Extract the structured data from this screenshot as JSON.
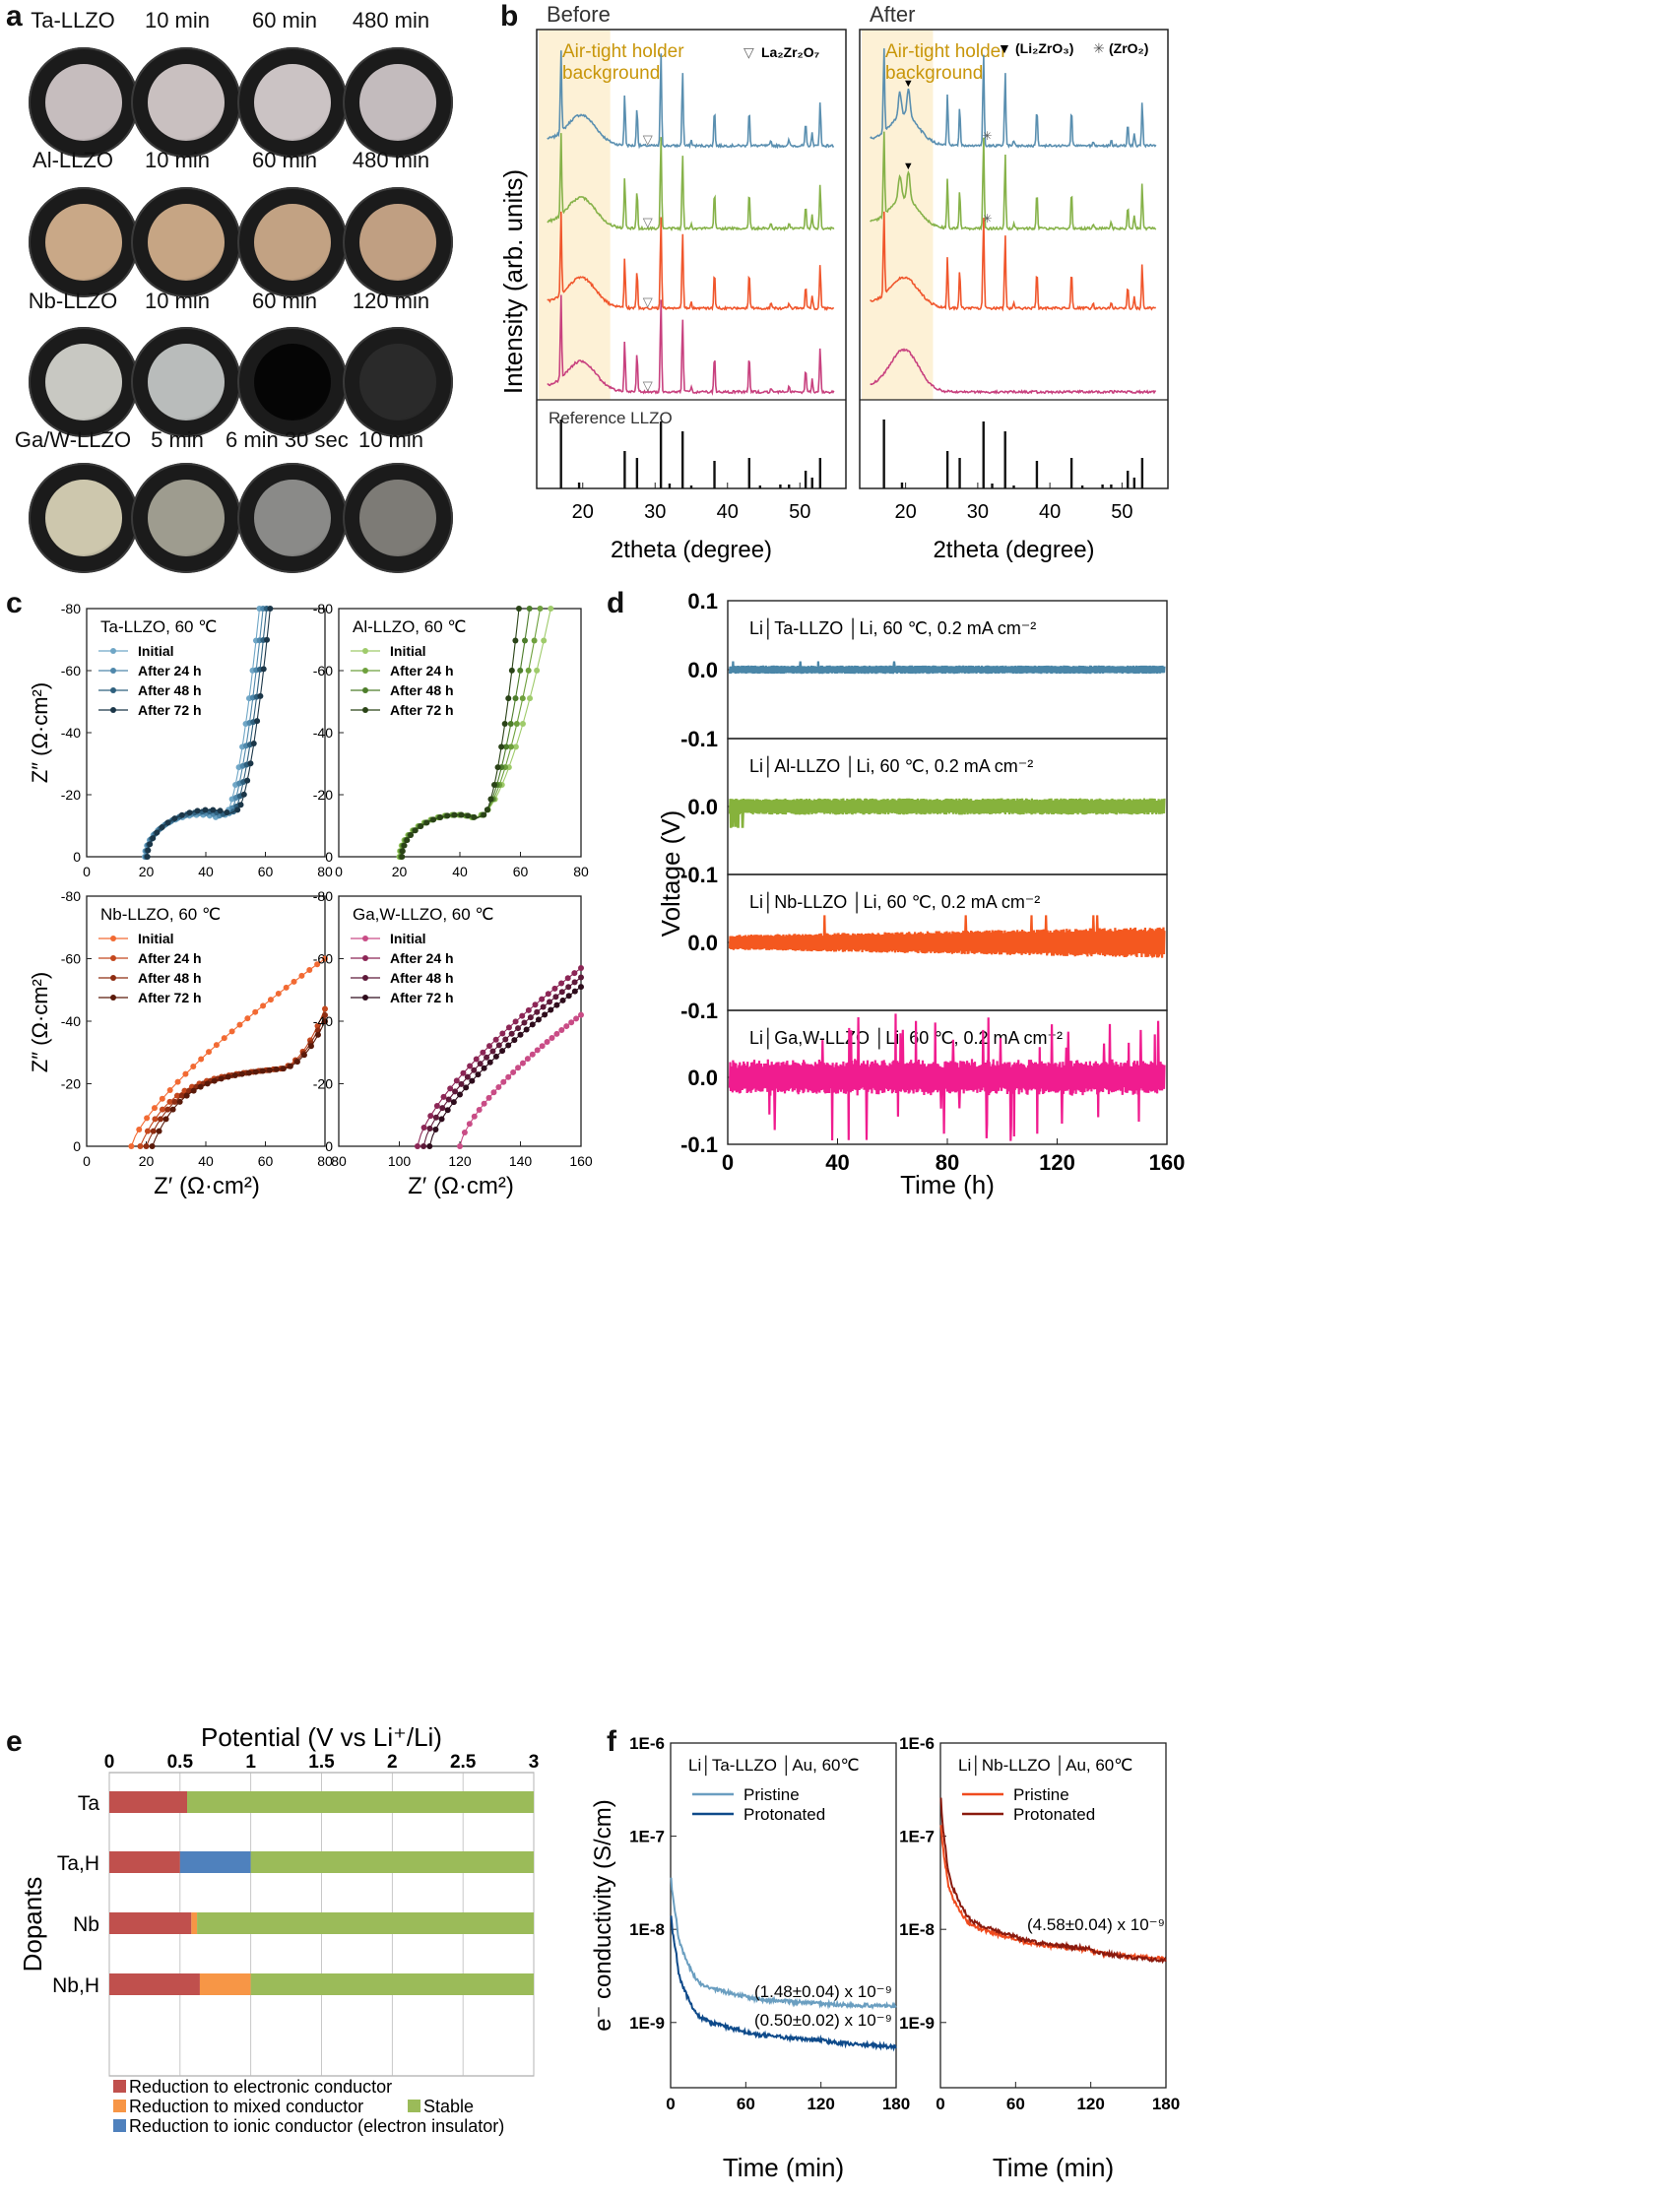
{
  "panel_labels": {
    "a": "a",
    "b": "b",
    "c": "c",
    "d": "d",
    "e": "e",
    "f": "f"
  },
  "panel_a": {
    "rows": [
      {
        "sample": "Ta-LLZO",
        "times": [
          "10 min",
          "60 min",
          "480 min"
        ],
        "colors": [
          "#c6bdbe",
          "#c9c0c0",
          "#cbc3c4",
          "#c3bbbd"
        ]
      },
      {
        "sample": "Al-LLZO",
        "times": [
          "10 min",
          "60 min",
          "480 min"
        ],
        "colors": [
          "#c9a887",
          "#c6a584",
          "#c2a283",
          "#c09f82"
        ]
      },
      {
        "sample": "Nb-LLZO",
        "times": [
          "10 min",
          "60 min",
          "120 min"
        ],
        "colors": [
          "#c8c8c2",
          "#b9bcbb",
          "#050505",
          "#2a2a2a"
        ]
      },
      {
        "sample": "Ga/W-LLZO",
        "times": [
          "5 min",
          "6 min 30 sec",
          "10 min"
        ],
        "colors": [
          "#cdc7ad",
          "#9e9c8f",
          "#8a8a88",
          "#7d7b76"
        ]
      }
    ]
  },
  "panel_b": {
    "before_title": "Before",
    "after_title": "After",
    "ylabel": "Intensity (arb. units)",
    "xlabel": "2theta (degree)",
    "bg_label_line1": "Air-tight holder",
    "bg_label_line2": "background",
    "legend_before": "La₂Zr₂O₇",
    "legend_after_1": "(Li₂ZrO₃)",
    "legend_after_2": "(ZrO₂)",
    "reference_label": "Reference LLZO",
    "xticks": [
      "20",
      "30",
      "40",
      "50"
    ],
    "series_colors": [
      "#5a8fb0",
      "#86b249",
      "#f0562c",
      "#c8417f"
    ]
  },
  "panel_c": {
    "ylabel": "Z″ (Ω·cm²)",
    "xlabel": "Z′ (Ω·cm²)",
    "legend": [
      "Initial",
      "After 24 h",
      "After 48 h",
      "After 72 h"
    ],
    "plots": [
      {
        "title": "Ta-LLZO, 60 ℃",
        "colors": [
          "#6fa6c6",
          "#4f88ab",
          "#2f607e",
          "#1b3648"
        ],
        "xticks": [
          "0",
          "20",
          "40",
          "60",
          "80"
        ],
        "yticks": [
          "0",
          "-20",
          "-40",
          "-60",
          "-80"
        ]
      },
      {
        "title": "Al-LLZO, 60 ℃",
        "colors": [
          "#9fcb6b",
          "#6ea03d",
          "#4d7d2b",
          "#2a4317"
        ],
        "xticks": [
          "0",
          "20",
          "40",
          "60",
          "80"
        ],
        "yticks": [
          "0",
          "-20",
          "-40",
          "-60",
          "-80"
        ]
      },
      {
        "title": "Nb-LLZO, 60 ℃",
        "colors": [
          "#f26a33",
          "#c4481e",
          "#8e2d12",
          "#5a1a0a"
        ],
        "xticks": [
          "0",
          "20",
          "40",
          "60",
          "80"
        ],
        "yticks": [
          "0",
          "-20",
          "-40",
          "-60",
          "-80"
        ]
      },
      {
        "title": "Ga,W-LLZO, 60 ℃",
        "colors": [
          "#c94c86",
          "#8c2656",
          "#5e1a3a",
          "#2e0c1c"
        ],
        "xticks": [
          "80",
          "100",
          "120",
          "140",
          "160"
        ],
        "yticks": [
          "0",
          "-20",
          "-40",
          "-60",
          "-80"
        ]
      }
    ]
  },
  "panel_d": {
    "ylabel": "Voltage (V)",
    "xlabel": "Time (h)",
    "xticks": [
      "0",
      "40",
      "80",
      "120",
      "160"
    ],
    "yticks": [
      "-0.1",
      "0.0",
      "0.1"
    ],
    "strips": [
      {
        "label": "Li│Ta-LLZO │Li, 60 ℃, 0.2 mA cm⁻²",
        "color": "#4a86a8"
      },
      {
        "label": "Li│Al-LLZO │Li, 60 ℃, 0.2 mA cm⁻²",
        "color": "#86b23c"
      },
      {
        "label": "Li│Nb-LLZO │Li, 60 ℃, 0.2 mA cm⁻²",
        "color": "#f4581f"
      },
      {
        "label": "Li│Ga,W-LLZO │Li, 60 ℃, 0.2 mA cm⁻²",
        "color": "#f01c8f"
      }
    ]
  },
  "chart_data": [
    {
      "type": "bar",
      "title": "Potential (V vs Li⁺/Li)",
      "ylabel": "Dopants",
      "categories": [
        "Ta",
        "Ta,H",
        "Nb",
        "Nb,H"
      ],
      "xlim": [
        0,
        3
      ],
      "xticks": [
        "0",
        "0.5",
        "1",
        "1.5",
        "2",
        "2.5",
        "3"
      ],
      "segments": [
        [
          {
            "kind": "electronic",
            "start": 0,
            "end": 0.55
          },
          {
            "kind": "stable",
            "start": 0.55,
            "end": 3
          }
        ],
        [
          {
            "kind": "electronic",
            "start": 0,
            "end": 0.5
          },
          {
            "kind": "ionic",
            "start": 0.5,
            "end": 1.0
          },
          {
            "kind": "stable",
            "start": 1.0,
            "end": 3
          }
        ],
        [
          {
            "kind": "electronic",
            "start": 0,
            "end": 0.58
          },
          {
            "kind": "mixed",
            "start": 0.58,
            "end": 0.62
          },
          {
            "kind": "stable",
            "start": 0.62,
            "end": 3
          }
        ],
        [
          {
            "kind": "electronic",
            "start": 0,
            "end": 0.64
          },
          {
            "kind": "mixed",
            "start": 0.64,
            "end": 1.0
          },
          {
            "kind": "stable",
            "start": 1.0,
            "end": 3
          }
        ]
      ],
      "legend": {
        "electronic": {
          "label": "Reduction to electronic conductor",
          "color": "#c0504d"
        },
        "mixed": {
          "label": "Reduction to mixed conductor",
          "color": "#f79646"
        },
        "ionic": {
          "label": "Reduction to ionic conductor (electron insulator)",
          "color": "#4f81bd"
        },
        "stable": {
          "label": "Stable",
          "color": "#9bbb59"
        }
      }
    },
    {
      "type": "line",
      "title": "Li│Ta-LLZO │Au, 60℃",
      "xlabel": "Time (min)",
      "ylabel": "e⁻ conductivity (S/cm)",
      "xlim": [
        0,
        180
      ],
      "ylim_log": [
        -9.7,
        -6
      ],
      "xticks": [
        "0",
        "60",
        "120",
        "180"
      ],
      "yticks": [
        "1E-9",
        "1E-8",
        "1E-7",
        "1E-6"
      ],
      "series": [
        {
          "name": "Pristine",
          "color": "#6a9ec0",
          "x": [
            0,
            5,
            20,
            60,
            120,
            180
          ],
          "y": [
            5e-08,
            1.2e-08,
            3e-09,
            1.9e-09,
            1.6e-09,
            1.5e-09
          ]
        },
        {
          "name": "Protonated",
          "color": "#0e4a8a",
          "x": [
            0,
            5,
            20,
            60,
            120,
            180
          ],
          "y": [
            2e-08,
            5e-09,
            1.3e-09,
            8e-10,
            6.5e-10,
            5.5e-10
          ]
        }
      ],
      "annotations": [
        "(1.48±0.04) x 10⁻⁹",
        "(0.50±0.02) x 10⁻⁹"
      ]
    },
    {
      "type": "line",
      "title": "Li│Nb-LLZO │Au, 60℃",
      "xlabel": "Time (min)",
      "ylabel": "",
      "xlim": [
        0,
        180
      ],
      "ylim_log": [
        -9.7,
        -6
      ],
      "xticks": [
        "0",
        "60",
        "120",
        "180"
      ],
      "yticks": [
        "1E-9",
        "1E-8",
        "1E-7",
        "1E-6"
      ],
      "series": [
        {
          "name": "Pristine",
          "color": "#f04b1e",
          "x": [
            0,
            5,
            20,
            60,
            120,
            180
          ],
          "y": [
            2e-07,
            4e-08,
            1.3e-08,
            8e-09,
            6e-09,
            4.8e-09
          ]
        },
        {
          "name": "Protonated",
          "color": "#8a1a0e",
          "x": [
            0,
            5,
            20,
            60,
            120,
            180
          ],
          "y": [
            4e-07,
            6e-08,
            1.5e-08,
            8.5e-09,
            6.2e-09,
            4.6e-09
          ]
        }
      ],
      "annotations": [
        "(4.58±0.04) x 10⁻⁹"
      ]
    }
  ]
}
